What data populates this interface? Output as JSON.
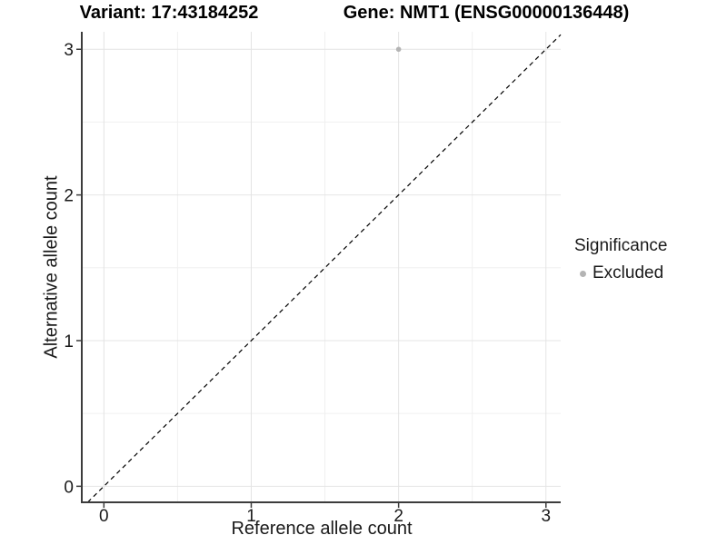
{
  "legend": {
    "title": "Significance",
    "items": [
      {
        "label": "Excluded",
        "color": "#b4b4b4"
      }
    ]
  },
  "chart_data": {
    "type": "scatter",
    "titles": [
      "Variant: 17:43184252",
      "Gene: NMT1 (ENSG00000136448)"
    ],
    "xlabel": "Reference allele count",
    "ylabel": "Alternative allele count",
    "xlim": [
      -0.15,
      3.1
    ],
    "ylim": [
      -0.11,
      3.12
    ],
    "x_ticks": [
      0,
      1,
      2,
      3
    ],
    "y_ticks": [
      0,
      1,
      2,
      3
    ],
    "x_minor_gridlines": [
      0.5,
      1.5,
      2.5
    ],
    "y_minor_gridlines": [
      0.5,
      1.5,
      2.5
    ],
    "grid": "major+minor",
    "legend_position": "right-center",
    "series": [
      {
        "name": "Excluded",
        "color": "#b4b4b4",
        "points": [
          {
            "x": 2,
            "y": 3
          }
        ]
      }
    ],
    "reference_line": {
      "description": "identity line y = x",
      "slope": 1,
      "intercept": 0,
      "style": "dashed",
      "color": "#000000"
    },
    "colors": {
      "grid_major": "#e4e4e4",
      "grid_minor": "#f0f0f0",
      "axis": "#3c3c3c",
      "tick_text": "#1a1a1a"
    }
  }
}
